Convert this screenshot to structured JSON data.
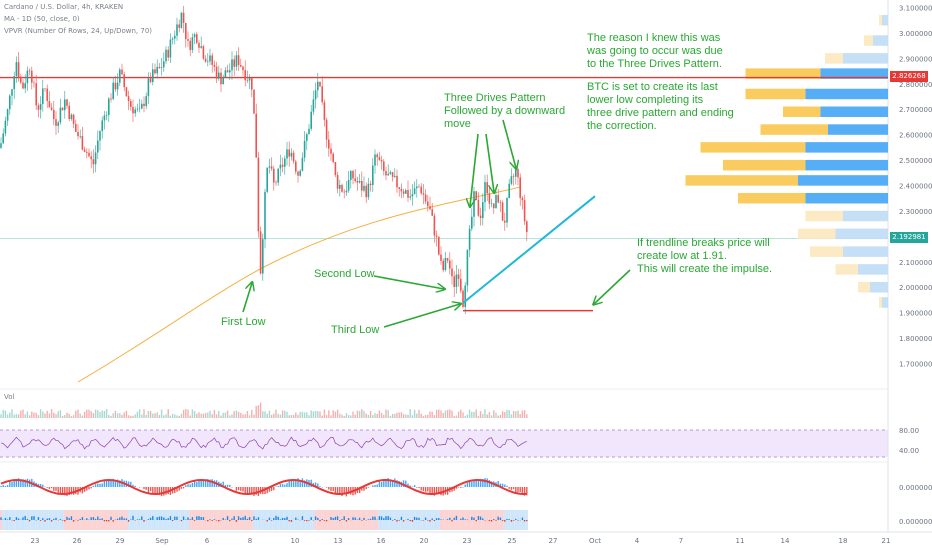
{
  "header": {
    "title": "Cardano / U.S. Dollar, 4h, KRAKEN",
    "ma_label": "MA - 1D (50, close, 0)",
    "vpvr_label": "VPVR (Number Of Rows, 24, Up/Down, 70)"
  },
  "panes": {
    "vol_label": "Vol",
    "rsi_levels": [
      "80.00",
      "40.00"
    ],
    "macd_scale": "0.000000",
    "osc_scale": "0.000000"
  },
  "price_axis": {
    "ticks": [
      "3.100000",
      "3.000000",
      "2.900000",
      "2.800000",
      "2.700000",
      "2.600000",
      "2.500000",
      "2.400000",
      "2.300000",
      "2.100000",
      "2.000000",
      "1.900000",
      "1.800000",
      "1.700000"
    ],
    "resistance_label": "2.826268",
    "current_label": "2.192981"
  },
  "time_axis": {
    "labels": [
      "23",
      "26",
      "29",
      "Sep",
      "6",
      "8",
      "10",
      "13",
      "16",
      "20",
      "23",
      "25",
      "27",
      "Oct",
      "4",
      "7",
      "11",
      "14",
      "18",
      "21"
    ]
  },
  "annotations": {
    "first_low": "First Low",
    "second_low": "Second Low",
    "third_low": "Third Low",
    "three_drives": "Three Drives Pattern\nFollowed by a downward\nmove",
    "reason": "The reason I knew this was\nwas going to occur was due\nto the Three Drives Pattern.",
    "btc": "BTC is set to create its last\nlower low completing its\nthree drive pattern and ending\nthe correction.",
    "trendline": "If trendline breaks price will\ncreate low at 1.91.\nThis will create the impulse."
  },
  "colors": {
    "up": "#26a69a",
    "down": "#ef5350",
    "resistance": "#e53935",
    "annotation": "#2aa834",
    "ma": "#f5b041",
    "trendline": "#1fb8d6",
    "vpvr_up": "#42a5f5",
    "vpvr_down": "#f9c74f"
  },
  "chart_data": {
    "type": "candlestick",
    "symbol": "ADAUSD",
    "timeframe": "4h",
    "ylim": [
      1.6,
      3.12
    ],
    "resistance": 2.826268,
    "current_price": 2.192981,
    "target_low": 1.91,
    "path": [
      [
        0,
        2.55
      ],
      [
        8,
        2.7
      ],
      [
        16,
        2.9
      ],
      [
        22,
        2.78
      ],
      [
        30,
        2.88
      ],
      [
        37,
        2.7
      ],
      [
        45,
        2.78
      ],
      [
        55,
        2.65
      ],
      [
        65,
        2.74
      ],
      [
        75,
        2.62
      ],
      [
        85,
        2.55
      ],
      [
        93,
        2.48
      ],
      [
        100,
        2.62
      ],
      [
        110,
        2.75
      ],
      [
        120,
        2.84
      ],
      [
        130,
        2.72
      ],
      [
        140,
        2.68
      ],
      [
        150,
        2.82
      ],
      [
        160,
        2.86
      ],
      [
        168,
        2.93
      ],
      [
        176,
        3.02
      ],
      [
        182,
        3.08
      ],
      [
        188,
        2.95
      ],
      [
        196,
        3.0
      ],
      [
        204,
        2.92
      ],
      [
        212,
        2.88
      ],
      [
        220,
        2.82
      ],
      [
        230,
        2.86
      ],
      [
        238,
        2.9
      ],
      [
        246,
        2.84
      ],
      [
        252,
        2.8
      ],
      [
        256,
        2.55
      ],
      [
        260,
        2.03
      ],
      [
        264,
        2.3
      ],
      [
        268,
        2.5
      ],
      [
        274,
        2.4
      ],
      [
        282,
        2.48
      ],
      [
        290,
        2.55
      ],
      [
        298,
        2.45
      ],
      [
        306,
        2.58
      ],
      [
        312,
        2.7
      ],
      [
        318,
        2.82
      ],
      [
        324,
        2.65
      ],
      [
        330,
        2.55
      ],
      [
        336,
        2.42
      ],
      [
        344,
        2.38
      ],
      [
        352,
        2.44
      ],
      [
        360,
        2.4
      ],
      [
        368,
        2.38
      ],
      [
        376,
        2.52
      ],
      [
        384,
        2.45
      ],
      [
        392,
        2.42
      ],
      [
        400,
        2.4
      ],
      [
        410,
        2.36
      ],
      [
        420,
        2.4
      ],
      [
        430,
        2.3
      ],
      [
        436,
        2.2
      ],
      [
        442,
        2.06
      ],
      [
        448,
        2.12
      ],
      [
        453,
        2.0
      ],
      [
        458,
        2.08
      ],
      [
        463,
        1.95
      ],
      [
        468,
        2.15
      ],
      [
        474,
        2.35
      ],
      [
        480,
        2.28
      ],
      [
        486,
        2.42
      ],
      [
        492,
        2.3
      ],
      [
        498,
        2.36
      ],
      [
        504,
        2.25
      ],
      [
        510,
        2.4
      ],
      [
        516,
        2.46
      ],
      [
        520,
        2.38
      ],
      [
        524,
        2.28
      ],
      [
        528,
        2.192981
      ]
    ],
    "trendline": [
      [
        463,
        1.94
      ],
      [
        595,
        2.36
      ]
    ],
    "projection": [
      [
        463,
        1.91
      ],
      [
        593,
        1.91
      ]
    ],
    "volume_profile": [
      {
        "price": 3.05,
        "up": 0.04,
        "down": 0.02
      },
      {
        "price": 2.97,
        "up": 0.1,
        "down": 0.06
      },
      {
        "price": 2.9,
        "up": 0.3,
        "down": 0.12
      },
      {
        "price": 2.84,
        "up": 0.45,
        "down": 0.5
      },
      {
        "price": 2.76,
        "up": 0.55,
        "down": 0.4
      },
      {
        "price": 2.69,
        "up": 0.45,
        "down": 0.25
      },
      {
        "price": 2.62,
        "up": 0.4,
        "down": 0.45
      },
      {
        "price": 2.55,
        "up": 0.55,
        "down": 0.7
      },
      {
        "price": 2.48,
        "up": 0.55,
        "down": 0.55
      },
      {
        "price": 2.42,
        "up": 0.6,
        "down": 0.75
      },
      {
        "price": 2.35,
        "up": 0.55,
        "down": 0.45
      },
      {
        "price": 2.28,
        "up": 0.3,
        "down": 0.25
      },
      {
        "price": 2.21,
        "up": 0.35,
        "down": 0.25
      },
      {
        "price": 2.14,
        "up": 0.3,
        "down": 0.22
      },
      {
        "price": 2.07,
        "up": 0.2,
        "down": 0.15
      },
      {
        "price": 2.0,
        "up": 0.12,
        "down": 0.08
      },
      {
        "price": 1.94,
        "up": 0.04,
        "down": 0.02
      }
    ]
  }
}
